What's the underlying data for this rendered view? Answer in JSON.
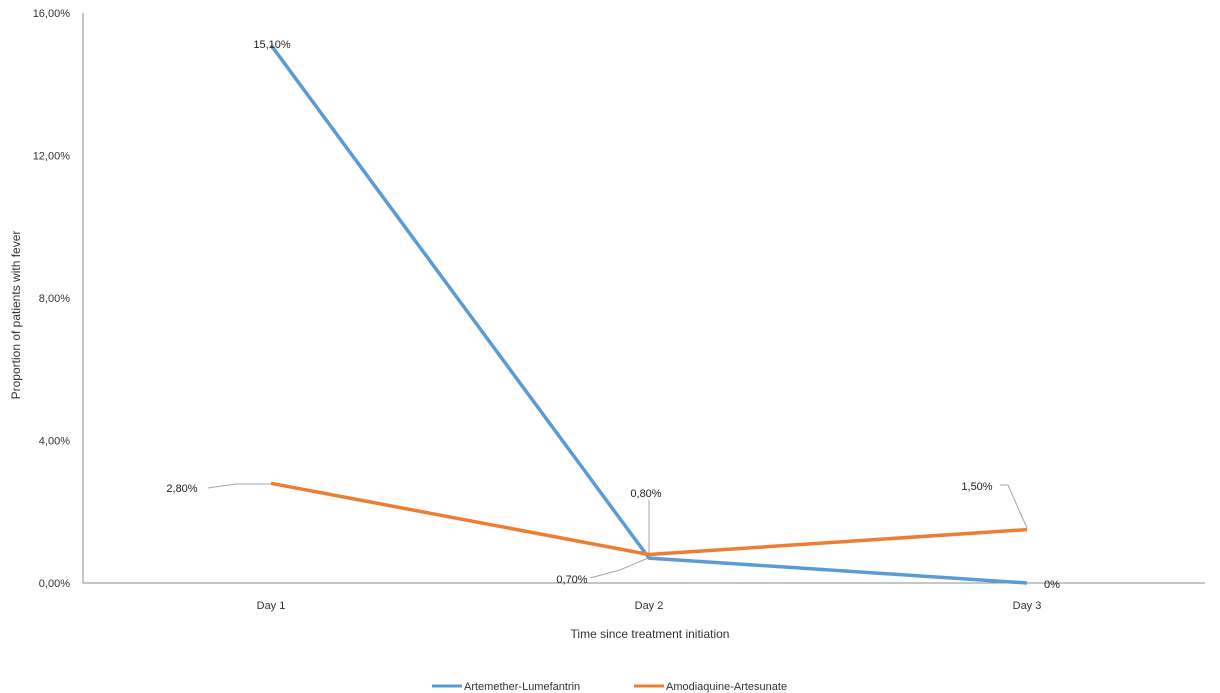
{
  "chart_data": {
    "type": "line",
    "title": "",
    "xlabel": "Time since treatment initiation",
    "ylabel": "Proportion of patients with fever",
    "categories": [
      "Day 1",
      "Day 2",
      "Day 3"
    ],
    "y_ticks": [
      0,
      4,
      8,
      12,
      16
    ],
    "y_tick_labels": [
      "0,00%",
      "4,00%",
      "8,00%",
      "12,00%",
      "16,00%"
    ],
    "ylim": [
      0,
      16
    ],
    "grid": false,
    "legend_position": "bottom",
    "series": [
      {
        "name": "Artemether-Lumefantrin",
        "color": "#5b9bd5",
        "values": [
          15.1,
          0.7,
          0
        ],
        "labels": [
          "15,10%",
          "0,70%",
          "0%"
        ]
      },
      {
        "name": "Amodiaquine-Artesunate",
        "color": "#ed7d31",
        "values": [
          2.8,
          0.8,
          1.5
        ],
        "labels": [
          "2,80%",
          "0,80%",
          "1,50%"
        ]
      }
    ]
  }
}
